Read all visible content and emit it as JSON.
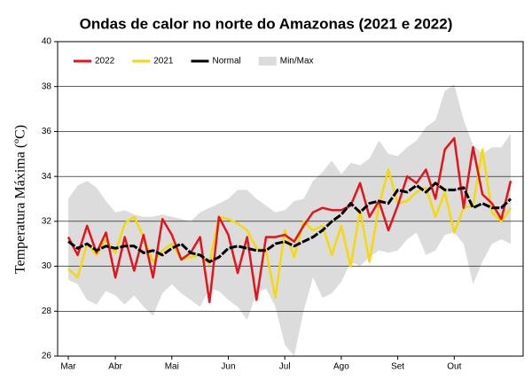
{
  "chart_data": {
    "type": "line",
    "title": "Ondas de calor no norte do Amazonas (2021 e 2022)",
    "y_label": "Temperatura Máxima (ºC)",
    "categories": [
      "Mar",
      null,
      null,
      null,
      null,
      "Abr",
      null,
      null,
      null,
      null,
      null,
      "Mai",
      null,
      null,
      null,
      null,
      null,
      "Jun",
      null,
      null,
      null,
      null,
      null,
      "Jul",
      null,
      null,
      null,
      null,
      null,
      "Ago",
      null,
      null,
      null,
      null,
      null,
      "Set",
      null,
      null,
      null,
      null,
      null,
      "Out",
      null,
      null,
      null,
      null,
      null,
      null
    ],
    "ylim": [
      26,
      40
    ],
    "yticks": [
      26,
      28,
      30,
      32,
      34,
      36,
      38,
      40
    ],
    "grid": true,
    "legend": "upper left",
    "band": {
      "name": "Min/Max",
      "color": "#dcdcdc",
      "lower": [
        29.4,
        29.2,
        28.5,
        28.3,
        28.9,
        28.7,
        28.3,
        28.7,
        28.2,
        27.8,
        28.8,
        29.2,
        28.8,
        28.5,
        28.2,
        29.0,
        28.9,
        28.5,
        28.2,
        27.6,
        28.8,
        29.0,
        28.2,
        26.5,
        26.0,
        28.0,
        29.5,
        28.6,
        28.8,
        29.3,
        30.2,
        30.0,
        30.4,
        30.7,
        30.6,
        30.7,
        31.2,
        31.5,
        30.5,
        30.7,
        31.4,
        31.5,
        31.0,
        29.2,
        30.2,
        31.0,
        31.2,
        31.0
      ],
      "upper": [
        33.0,
        33.6,
        33.8,
        33.5,
        32.9,
        32.4,
        32.5,
        32.3,
        32.2,
        32.2,
        32.3,
        32.2,
        32.1,
        32.0,
        32.4,
        32.6,
        32.8,
        33.0,
        33.4,
        33.4,
        33.0,
        32.7,
        32.4,
        32.5,
        32.9,
        33.0,
        33.8,
        34.2,
        34.7,
        34.1,
        34.6,
        34.5,
        34.8,
        35.6,
        35.0,
        34.9,
        35.3,
        35.6,
        36.2,
        36.5,
        37.8,
        38.1,
        36.5,
        35.4,
        35.0,
        35.3,
        35.3,
        35.9
      ]
    },
    "series": [
      {
        "name": "2022",
        "color": "#e3141b",
        "linestyle": "solid",
        "values": [
          31.3,
          30.5,
          31.8,
          30.6,
          31.5,
          29.5,
          31.3,
          29.8,
          31.4,
          29.5,
          32.1,
          31.4,
          30.3,
          30.6,
          31.3,
          28.4,
          32.2,
          31.4,
          29.7,
          31.3,
          28.5,
          31.3,
          31.3,
          31.4,
          31.1,
          31.8,
          32.4,
          32.6,
          32.5,
          32.5,
          32.7,
          33.7,
          32.2,
          32.9,
          31.6,
          32.7,
          34.0,
          33.7,
          34.3,
          33.0,
          35.2,
          35.7,
          32.6,
          35.3,
          33.2,
          32.8,
          32.1,
          33.8
        ]
      },
      {
        "name": "2021",
        "color": "#f5d90a",
        "linestyle": "solid",
        "values": [
          29.9,
          29.5,
          31.0,
          30.5,
          31.2,
          30.6,
          31.9,
          32.2,
          31.3,
          30.2,
          30.7,
          31.0,
          30.3,
          30.4,
          30.5,
          30.1,
          32.2,
          32.1,
          31.9,
          31.6,
          30.8,
          30.7,
          28.6,
          31.6,
          30.4,
          32.0,
          31.6,
          31.8,
          30.5,
          31.8,
          30.0,
          32.5,
          30.2,
          32.7,
          34.3,
          32.8,
          32.9,
          33.3,
          33.5,
          32.2,
          33.3,
          31.5,
          32.6,
          32.7,
          35.2,
          32.4,
          32.0,
          32.6
        ]
      },
      {
        "name": "Normal",
        "color": "#000000",
        "linestyle": "dashed",
        "values": [
          31.1,
          30.8,
          31.0,
          30.7,
          30.9,
          30.8,
          30.9,
          30.9,
          30.6,
          30.7,
          30.5,
          30.8,
          31.0,
          30.6,
          30.5,
          30.2,
          30.4,
          30.8,
          30.9,
          30.8,
          30.7,
          30.7,
          31.0,
          31.1,
          30.9,
          31.1,
          31.3,
          31.6,
          32.0,
          32.3,
          32.8,
          32.4,
          32.8,
          32.9,
          32.8,
          33.4,
          33.3,
          33.6,
          33.3,
          33.7,
          33.4,
          33.4,
          33.5,
          32.6,
          32.8,
          32.6,
          32.6,
          33.0
        ]
      }
    ]
  }
}
